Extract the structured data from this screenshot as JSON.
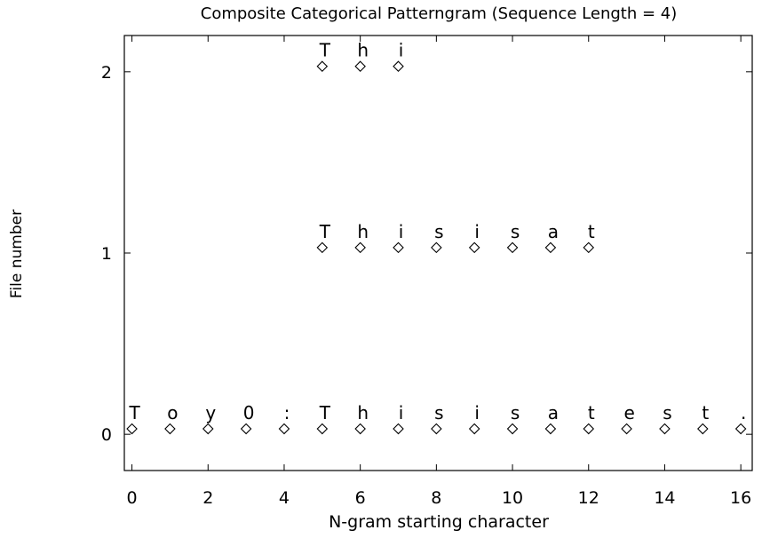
{
  "chart_data": {
    "type": "scatter",
    "title": "Composite Categorical Patterngram (Sequence Length = 4)",
    "xlabel": "N-gram starting character",
    "ylabel": "File number",
    "xlim": [
      -0.2,
      16.3
    ],
    "ylim": [
      -0.2,
      2.2
    ],
    "x_ticks": [
      0,
      2,
      4,
      6,
      8,
      10,
      12,
      14,
      16
    ],
    "y_ticks": [
      0,
      1,
      2
    ],
    "grid": false,
    "legend": "none",
    "marker": "diamond",
    "series": [
      {
        "file": 0,
        "points": [
          {
            "x": 0,
            "y": 0.03,
            "char": "T"
          },
          {
            "x": 1,
            "y": 0.03,
            "char": "o"
          },
          {
            "x": 2,
            "y": 0.03,
            "char": "y"
          },
          {
            "x": 3,
            "y": 0.03,
            "char": "0"
          },
          {
            "x": 4,
            "y": 0.03,
            "char": ":"
          },
          {
            "x": 5,
            "y": 0.03,
            "char": "T"
          },
          {
            "x": 6,
            "y": 0.03,
            "char": "h"
          },
          {
            "x": 7,
            "y": 0.03,
            "char": "i"
          },
          {
            "x": 8,
            "y": 0.03,
            "char": "s"
          },
          {
            "x": 9,
            "y": 0.03,
            "char": "i"
          },
          {
            "x": 10,
            "y": 0.03,
            "char": "s"
          },
          {
            "x": 11,
            "y": 0.03,
            "char": "a"
          },
          {
            "x": 12,
            "y": 0.03,
            "char": "t"
          },
          {
            "x": 13,
            "y": 0.03,
            "char": "e"
          },
          {
            "x": 14,
            "y": 0.03,
            "char": "s"
          },
          {
            "x": 15,
            "y": 0.03,
            "char": "t"
          },
          {
            "x": 16,
            "y": 0.03,
            "char": "."
          }
        ]
      },
      {
        "file": 1,
        "points": [
          {
            "x": 5,
            "y": 1.03,
            "char": "T"
          },
          {
            "x": 6,
            "y": 1.03,
            "char": "h"
          },
          {
            "x": 7,
            "y": 1.03,
            "char": "i"
          },
          {
            "x": 8,
            "y": 1.03,
            "char": "s"
          },
          {
            "x": 9,
            "y": 1.03,
            "char": "i"
          },
          {
            "x": 10,
            "y": 1.03,
            "char": "s"
          },
          {
            "x": 11,
            "y": 1.03,
            "char": "a"
          },
          {
            "x": 12,
            "y": 1.03,
            "char": "t"
          }
        ]
      },
      {
        "file": 2,
        "points": [
          {
            "x": 5,
            "y": 2.03,
            "char": "T"
          },
          {
            "x": 6,
            "y": 2.03,
            "char": "h"
          },
          {
            "x": 7,
            "y": 2.03,
            "char": "i"
          }
        ]
      }
    ]
  }
}
